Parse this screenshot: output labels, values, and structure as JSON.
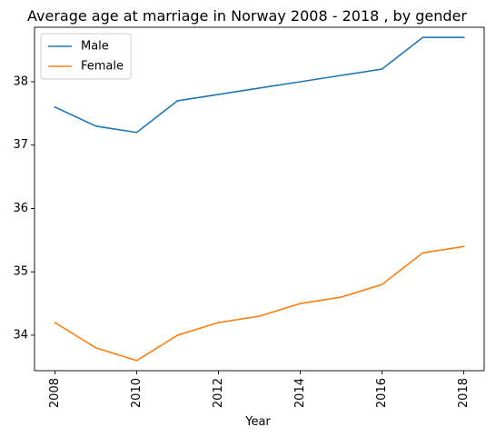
{
  "chart_data": {
    "type": "line",
    "title": "Average age at marriage in Norway 2008 - 2018 , by gender",
    "xlabel": "Year",
    "ylabel": "",
    "x": [
      2008,
      2009,
      2010,
      2011,
      2012,
      2013,
      2014,
      2015,
      2016,
      2017,
      2018
    ],
    "x_ticks": [
      "2008",
      "2010",
      "2012",
      "2014",
      "2016",
      "2018"
    ],
    "y_ticks": [
      "34",
      "35",
      "36",
      "37",
      "38"
    ],
    "xlim": [
      2007.5,
      2018.5
    ],
    "ylim": [
      33.44,
      38.86
    ],
    "grid": false,
    "legend_position": "top-left",
    "series": [
      {
        "name": "Male",
        "color": "#1f77b4",
        "values": [
          37.6,
          37.3,
          37.2,
          37.7,
          37.8,
          37.9,
          38.0,
          38.1,
          38.2,
          38.7,
          38.7
        ]
      },
      {
        "name": "Female",
        "color": "#ff7f0e",
        "values": [
          34.2,
          33.8,
          33.6,
          34.0,
          34.2,
          34.3,
          34.5,
          34.6,
          34.8,
          35.3,
          35.4
        ]
      }
    ]
  }
}
